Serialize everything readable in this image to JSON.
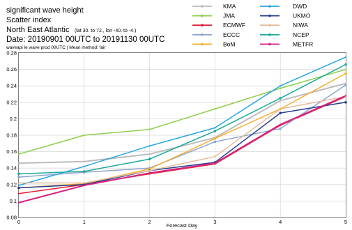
{
  "header": {
    "line1": "significant wave height",
    "line2": "Scatter index",
    "line3_main": "North East Atlantic",
    "line3_sub": "(lat  30. to 72., lon  -40. to  -4.)",
    "line4": "Date: 20190901 00UTC to 20191130 00UTC",
    "line5": "waveapi le wave prod 00UTC | Mean method: fair"
  },
  "chart_data": {
    "type": "line",
    "title": "significant wave height",
    "subtitle": "Scatter index",
    "xlabel": "Forecast Day",
    "ylabel": "",
    "x": [
      0,
      1,
      2,
      3,
      4,
      5
    ],
    "xlim": [
      0,
      5
    ],
    "ylim": [
      0.08,
      0.28
    ],
    "yticks": [
      0.08,
      0.1,
      0.12,
      0.14,
      0.16,
      0.18,
      0.2,
      0.22,
      0.24,
      0.26,
      0.28
    ],
    "ytick_labels": [
      "0.08",
      "0.1",
      "0.12",
      "0.14",
      "0.16",
      "0.18",
      "0.2",
      "0.22",
      "0.24",
      "0.26",
      "0.28"
    ],
    "xticks": [
      0,
      1,
      2,
      3,
      4,
      5
    ],
    "grid": true,
    "legend_position": "top-right",
    "series": [
      {
        "name": "KMA",
        "color": "#bcbcbc",
        "marker": "none",
        "width": 2,
        "values": [
          0.146,
          0.148,
          0.157,
          0.177,
          0.222,
          0.243
        ]
      },
      {
        "name": "JMA",
        "color": "#8fcf4d",
        "marker": "none",
        "width": 1.5,
        "values": [
          0.157,
          0.18,
          0.187,
          0.212,
          0.237,
          0.26
        ]
      },
      {
        "name": "ECMWF",
        "color": "#e0213a",
        "marker": "none",
        "width": 1.5,
        "values": [
          0.109,
          0.12,
          0.133,
          0.145,
          0.192,
          0.227
        ]
      },
      {
        "name": "ECCC",
        "color": "#8fa4d4",
        "marker": "dot",
        "width": 1.5,
        "values": [
          0.129,
          0.135,
          0.14,
          0.172,
          0.188,
          0.241
        ]
      },
      {
        "name": "BoM",
        "color": "#f5b02e",
        "marker": "dot",
        "width": 1.5,
        "values": [
          0.116,
          0.121,
          0.139,
          0.176,
          0.212,
          0.255
        ]
      },
      {
        "name": "DWD",
        "color": "#27a5e3",
        "marker": "none",
        "width": 1.5,
        "values": [
          0.119,
          0.142,
          0.167,
          0.189,
          0.24,
          0.275
        ]
      },
      {
        "name": "UKMO",
        "color": "#283f8e",
        "marker": "dot",
        "width": 1.5,
        "values": [
          0.116,
          0.12,
          0.137,
          0.147,
          0.207,
          0.22
        ]
      },
      {
        "name": "NIWA",
        "color": "#e6bc99",
        "marker": "none",
        "width": 1.5,
        "values": [
          0.122,
          0.122,
          0.137,
          0.154,
          0.212,
          0.227
        ]
      },
      {
        "name": "NCEP",
        "color": "#1ba896",
        "marker": "dot",
        "width": 1.5,
        "values": [
          0.133,
          0.136,
          0.151,
          0.185,
          0.225,
          0.266
        ]
      },
      {
        "name": "METFR",
        "color": "#d42680",
        "marker": "none",
        "width": 2,
        "values": [
          0.098,
          0.119,
          0.134,
          0.146,
          0.193,
          0.228
        ]
      }
    ]
  }
}
